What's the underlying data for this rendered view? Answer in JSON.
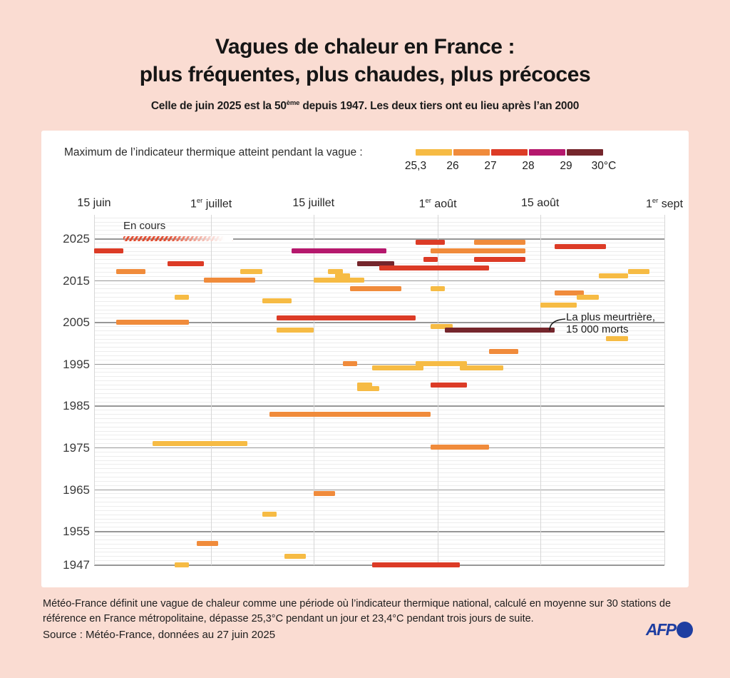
{
  "title": {
    "line1": "Vagues de chaleur en France :",
    "line2": "plus fréquentes, plus chaudes, plus précoces"
  },
  "subtitle_parts": [
    "Celle de juin 2025 est la 50",
    "^ème",
    " depuis 1947. Les deux tiers ont eu lieu après l’an 2000"
  ],
  "legend": {
    "label": "Maximum de l’indicateur thermique atteint pendant la vague :",
    "ticks": [
      "25,3",
      "26",
      "27",
      "28",
      "29",
      "30°C"
    ]
  },
  "annotations": {
    "en_cours": "En cours",
    "deadliest_line1": "La plus meurtrière,",
    "deadliest_line2": "15 000 morts"
  },
  "footer": {
    "definition": "Météo-France définit une vague de chaleur comme une période où l’indicateur thermique national, calculé en moyenne sur 30 stations de référence en France métropolitaine, dépasse 25,3°C pendant un jour et 23,4°C pendant trois jours de suite.",
    "source": "Source : Météo-France, données au 27 juin 2025",
    "afp_label": "AFP"
  },
  "colors": {
    "background": "#FADCD2",
    "card": "#FFFFFF",
    "afp_blue": "#1E3EA1",
    "hatch_red": "#E0492D"
  },
  "chart_data": {
    "type": "gantt-timeline",
    "x_axis_note": "dates from 15 June to 1 September",
    "x_ticks": [
      {
        "parts": [
          "15 juin"
        ],
        "date": [
          6,
          15
        ]
      },
      {
        "parts": [
          "1",
          "^er",
          " juillet"
        ],
        "date": [
          7,
          1
        ]
      },
      {
        "parts": [
          "15 juillet"
        ],
        "date": [
          7,
          15
        ]
      },
      {
        "parts": [
          "1",
          "^er",
          " août"
        ],
        "date": [
          8,
          1
        ]
      },
      {
        "parts": [
          "15 août"
        ],
        "date": [
          8,
          15
        ]
      },
      {
        "parts": [
          "1",
          "^er",
          " sept"
        ],
        "date": [
          9,
          1
        ]
      }
    ],
    "y_ticks": [
      2025,
      2015,
      2005,
      1995,
      1985,
      1975,
      1965,
      1955,
      1947
    ],
    "y_range": [
      1947,
      2025
    ],
    "levels": {
      "25,3-26": "#F6BB44",
      "26-27": "#F08B3B",
      "27-28": "#DC3B26",
      "28-29": "#B5186D",
      "29-30": "#75262C"
    },
    "bars": [
      {
        "year": 2025,
        "start": [
          6,
          19
        ],
        "end": [
          6,
          27
        ],
        "level": "27-28",
        "hatched": true,
        "fade_end": [
          7,
          4
        ],
        "note": "En cours"
      },
      {
        "year": 2024,
        "start": [
          7,
          29
        ],
        "end": [
          8,
          2
        ],
        "level": "27-28"
      },
      {
        "year": 2024,
        "start": [
          8,
          6
        ],
        "end": [
          8,
          13
        ],
        "level": "26-27"
      },
      {
        "year": 2023,
        "start": [
          8,
          17
        ],
        "end": [
          8,
          24
        ],
        "level": "27-28"
      },
      {
        "year": 2022,
        "start": [
          6,
          15
        ],
        "end": [
          6,
          19
        ],
        "level": "27-28"
      },
      {
        "year": 2022,
        "start": [
          7,
          12
        ],
        "end": [
          7,
          25
        ],
        "level": "28-29"
      },
      {
        "year": 2022,
        "start": [
          7,
          31
        ],
        "end": [
          8,
          13
        ],
        "level": "26-27"
      },
      {
        "year": 2020,
        "start": [
          7,
          30
        ],
        "end": [
          8,
          1
        ],
        "level": "27-28"
      },
      {
        "year": 2020,
        "start": [
          8,
          6
        ],
        "end": [
          8,
          13
        ],
        "level": "27-28"
      },
      {
        "year": 2019,
        "start": [
          6,
          25
        ],
        "end": [
          6,
          30
        ],
        "level": "27-28"
      },
      {
        "year": 2019,
        "start": [
          7,
          21
        ],
        "end": [
          7,
          26
        ],
        "level": "29-30"
      },
      {
        "year": 2018,
        "start": [
          7,
          24
        ],
        "end": [
          8,
          8
        ],
        "level": "27-28"
      },
      {
        "year": 2017,
        "start": [
          6,
          18
        ],
        "end": [
          6,
          22
        ],
        "level": "26-27"
      },
      {
        "year": 2017,
        "start": [
          7,
          5
        ],
        "end": [
          7,
          8
        ],
        "level": "25,3-26"
      },
      {
        "year": 2017,
        "start": [
          7,
          17
        ],
        "end": [
          7,
          19
        ],
        "level": "25,3-26"
      },
      {
        "year": 2017,
        "start": [
          8,
          27
        ],
        "end": [
          8,
          30
        ],
        "level": "25,3-26"
      },
      {
        "year": 2016,
        "start": [
          7,
          18
        ],
        "end": [
          7,
          20
        ],
        "level": "25,3-26"
      },
      {
        "year": 2016,
        "start": [
          8,
          23
        ],
        "end": [
          8,
          27
        ],
        "level": "25,3-26"
      },
      {
        "year": 2015,
        "start": [
          6,
          30
        ],
        "end": [
          7,
          7
        ],
        "level": "26-27"
      },
      {
        "year": 2015,
        "start": [
          7,
          15
        ],
        "end": [
          7,
          22
        ],
        "level": "25,3-26"
      },
      {
        "year": 2013,
        "start": [
          7,
          20
        ],
        "end": [
          7,
          27
        ],
        "level": "26-27"
      },
      {
        "year": 2013,
        "start": [
          7,
          31
        ],
        "end": [
          8,
          2
        ],
        "level": "25,3-26"
      },
      {
        "year": 2012,
        "start": [
          8,
          17
        ],
        "end": [
          8,
          21
        ],
        "level": "26-27"
      },
      {
        "year": 2011,
        "start": [
          6,
          26
        ],
        "end": [
          6,
          28
        ],
        "level": "25,3-26"
      },
      {
        "year": 2011,
        "start": [
          8,
          20
        ],
        "end": [
          8,
          23
        ],
        "level": "25,3-26"
      },
      {
        "year": 2010,
        "start": [
          7,
          8
        ],
        "end": [
          7,
          12
        ],
        "level": "25,3-26"
      },
      {
        "year": 2009,
        "start": [
          8,
          15
        ],
        "end": [
          8,
          20
        ],
        "level": "25,3-26"
      },
      {
        "year": 2006,
        "start": [
          7,
          10
        ],
        "end": [
          7,
          29
        ],
        "level": "27-28"
      },
      {
        "year": 2005,
        "start": [
          6,
          18
        ],
        "end": [
          6,
          28
        ],
        "level": "26-27"
      },
      {
        "year": 2004,
        "start": [
          7,
          31
        ],
        "end": [
          8,
          3
        ],
        "level": "25,3-26"
      },
      {
        "year": 2003,
        "start": [
          7,
          10
        ],
        "end": [
          7,
          15
        ],
        "level": "25,3-26"
      },
      {
        "year": 2003,
        "start": [
          8,
          2
        ],
        "end": [
          8,
          17
        ],
        "level": "29-30",
        "annotation": "deadliest"
      },
      {
        "year": 2001,
        "start": [
          8,
          24
        ],
        "end": [
          8,
          27
        ],
        "level": "25,3-26"
      },
      {
        "year": 1998,
        "start": [
          8,
          8
        ],
        "end": [
          8,
          12
        ],
        "level": "26-27"
      },
      {
        "year": 1995,
        "start": [
          7,
          19
        ],
        "end": [
          7,
          21
        ],
        "level": "26-27"
      },
      {
        "year": 1995,
        "start": [
          7,
          29
        ],
        "end": [
          8,
          5
        ],
        "level": "25,3-26"
      },
      {
        "year": 1994,
        "start": [
          7,
          23
        ],
        "end": [
          7,
          30
        ],
        "level": "25,3-26"
      },
      {
        "year": 1994,
        "start": [
          8,
          4
        ],
        "end": [
          8,
          10
        ],
        "level": "25,3-26"
      },
      {
        "year": 1990,
        "start": [
          7,
          21
        ],
        "end": [
          7,
          23
        ],
        "level": "25,3-26"
      },
      {
        "year": 1990,
        "start": [
          7,
          31
        ],
        "end": [
          8,
          5
        ],
        "level": "27-28"
      },
      {
        "year": 1989,
        "start": [
          7,
          21
        ],
        "end": [
          7,
          24
        ],
        "level": "25,3-26"
      },
      {
        "year": 1983,
        "start": [
          7,
          9
        ],
        "end": [
          7,
          31
        ],
        "level": "26-27"
      },
      {
        "year": 1976,
        "start": [
          6,
          23
        ],
        "end": [
          7,
          6
        ],
        "level": "25,3-26"
      },
      {
        "year": 1975,
        "start": [
          7,
          31
        ],
        "end": [
          8,
          8
        ],
        "level": "26-27"
      },
      {
        "year": 1964,
        "start": [
          7,
          15
        ],
        "end": [
          7,
          18
        ],
        "level": "26-27"
      },
      {
        "year": 1959,
        "start": [
          7,
          8
        ],
        "end": [
          7,
          10
        ],
        "level": "25,3-26"
      },
      {
        "year": 1952,
        "start": [
          6,
          29
        ],
        "end": [
          7,
          2
        ],
        "level": "26-27"
      },
      {
        "year": 1949,
        "start": [
          7,
          11
        ],
        "end": [
          7,
          14
        ],
        "level": "25,3-26"
      },
      {
        "year": 1947,
        "start": [
          6,
          26
        ],
        "end": [
          6,
          28
        ],
        "level": "25,3-26"
      },
      {
        "year": 1947,
        "start": [
          7,
          23
        ],
        "end": [
          8,
          4
        ],
        "level": "27-28"
      }
    ]
  }
}
